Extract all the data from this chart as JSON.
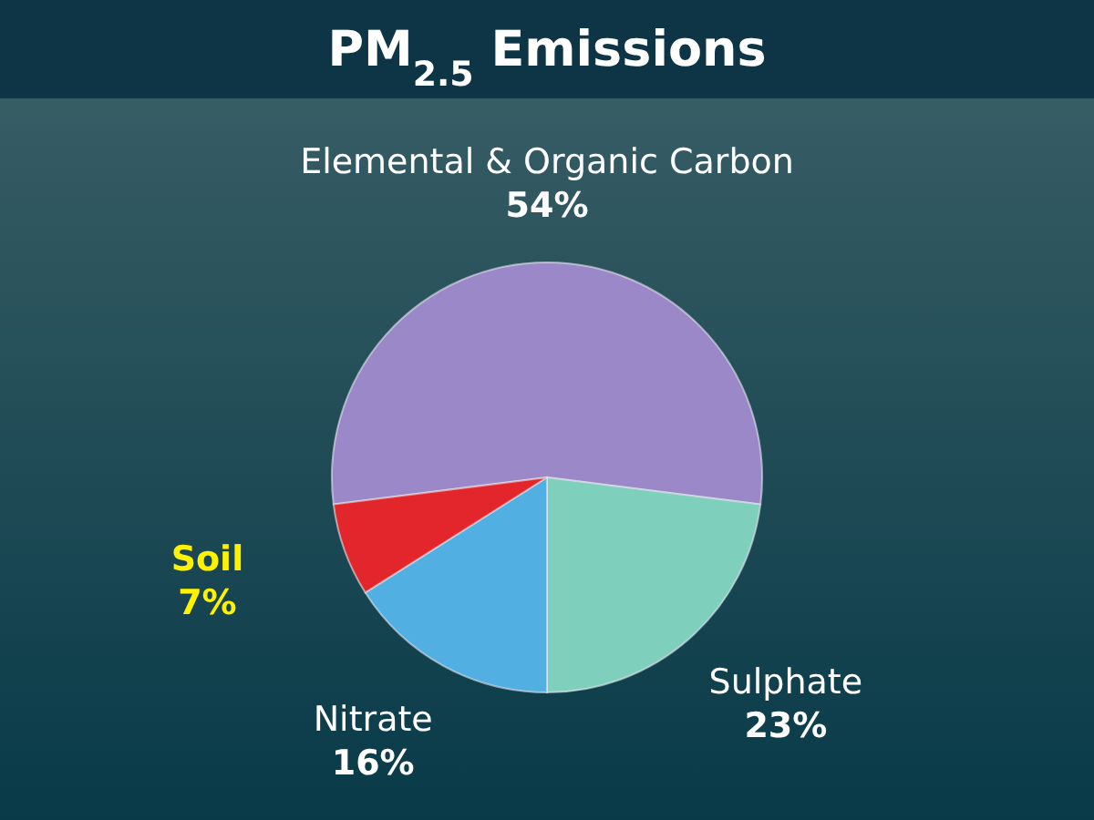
{
  "chart_data": {
    "type": "pie",
    "title": "PM$_{2.5}$ Emissions",
    "categories": [
      "Elemental & Organic Carbon",
      "Sulphate",
      "Nitrate",
      "Soil"
    ],
    "values": [
      54,
      23,
      16,
      7
    ],
    "value_labels": [
      "54%",
      "23%",
      "16%",
      "7%"
    ],
    "colors": [
      "#9b88c8",
      "#7ecfbb",
      "#52afe2",
      "#e3262c"
    ]
  }
}
